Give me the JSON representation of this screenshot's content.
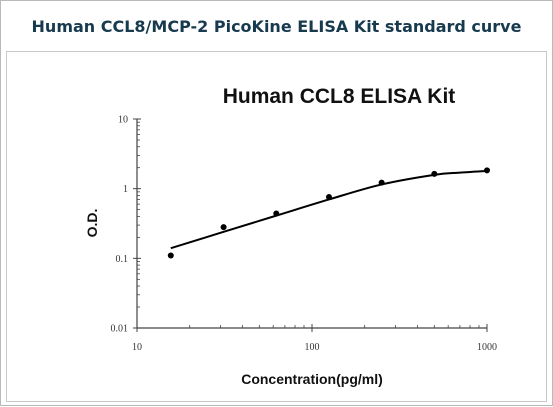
{
  "page": {
    "title": "Human CCL8/MCP-2 PicoKine ELISA Kit standard curve"
  },
  "chart_data": {
    "type": "scatter",
    "title": "Human CCL8 ELISA Kit",
    "xlabel": "Concentration(pg/ml)",
    "ylabel": "O.D.",
    "xscale": "log",
    "yscale": "log",
    "xlim": [
      10,
      1000
    ],
    "ylim": [
      0.01,
      10
    ],
    "x_ticks": [
      "10",
      "100",
      "1000"
    ],
    "y_ticks": [
      "0.01",
      "0.1",
      "1",
      "10"
    ],
    "grid": false,
    "series": [
      {
        "x": [
          15.6,
          31.25,
          62.5,
          125,
          250,
          500,
          1000
        ],
        "y": [
          0.11,
          0.28,
          0.44,
          0.76,
          1.22,
          1.63,
          1.83
        ]
      }
    ],
    "fit_curve": {
      "x": [
        15.6,
        31.25,
        62.5,
        125,
        250,
        500,
        700,
        1000
      ],
      "y": [
        0.14,
        0.24,
        0.41,
        0.7,
        1.15,
        1.58,
        1.7,
        1.8
      ]
    },
    "colors": {
      "points": "#000000",
      "curve": "#000000",
      "axis": "#444444"
    }
  }
}
